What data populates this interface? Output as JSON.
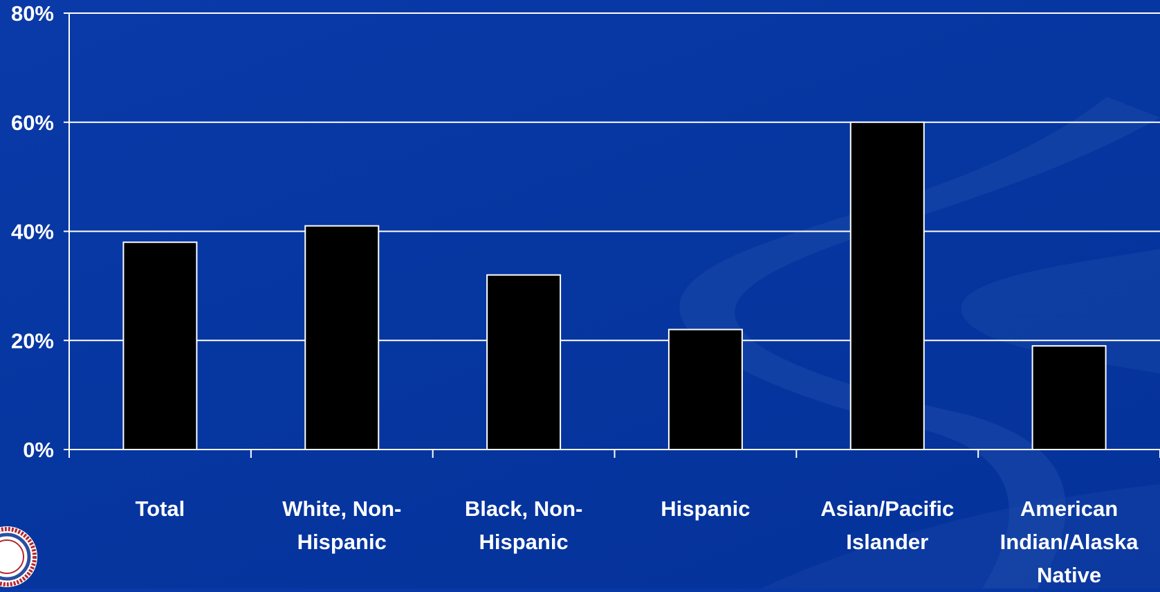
{
  "chart_data": {
    "type": "bar",
    "categories": [
      "Total",
      "White, Non-\nHispanic",
      "Black, Non-\nHispanic",
      "Hispanic",
      "Asian/Pacific\nIslander",
      "American\nIndian/Alaska\nNative"
    ],
    "values": [
      38,
      41,
      32,
      22,
      60,
      19
    ],
    "yticks": [
      "0%",
      "20%",
      "40%",
      "60%",
      "80%"
    ],
    "ylim": [
      0,
      80
    ],
    "grid": true,
    "bar_color": "#000000",
    "bar_border_color": "#ffffff",
    "axis_color": "#ffffff",
    "text_color": "#ffffff"
  },
  "colors": {
    "background": "#0536a0",
    "swoosh": "#1d4aa8"
  }
}
